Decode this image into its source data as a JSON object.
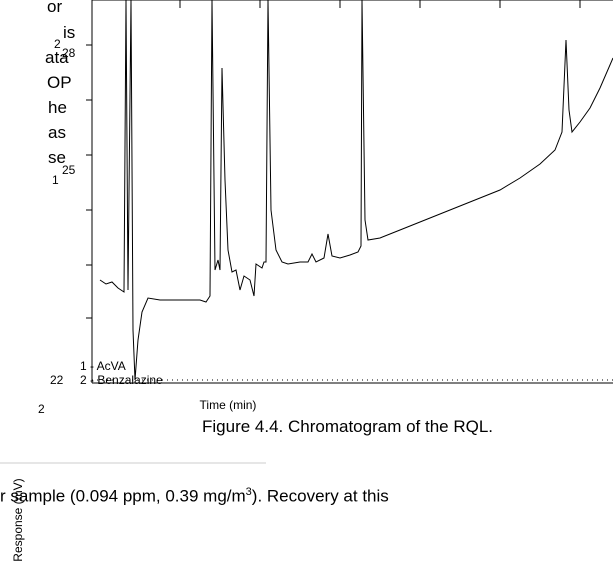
{
  "left_fragments": {
    "lines": [
      "or",
      "is",
      "ata",
      "OP",
      "he",
      "as",
      "se"
    ],
    "marks": [
      "2",
      "28",
      "1",
      "25",
      "22",
      "2"
    ]
  },
  "figure": {
    "peak_labels": [
      "1 - AcVA",
      "2 - Benzalazine"
    ],
    "x_label": "Time (min)",
    "y_label": "Response (mV)",
    "caption": "Figure 4.4.  Chromatogram of the RQL."
  },
  "body_text": {
    "before": "r sample (0.094 ppm, 0.39 mg/m",
    "sup": "3",
    "after": ").  Recovery at this"
  }
}
